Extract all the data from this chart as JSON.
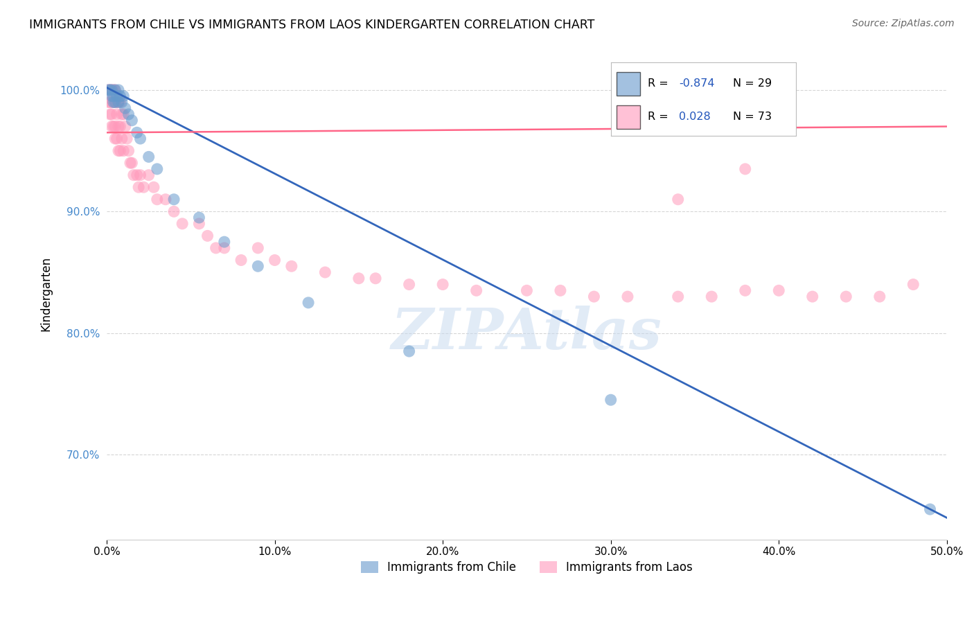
{
  "title": "IMMIGRANTS FROM CHILE VS IMMIGRANTS FROM LAOS KINDERGARTEN CORRELATION CHART",
  "source": "Source: ZipAtlas.com",
  "ylabel": "Kindergarten",
  "xlim": [
    0.0,
    0.5
  ],
  "ylim": [
    0.63,
    1.035
  ],
  "xticks": [
    0.0,
    0.1,
    0.2,
    0.3,
    0.4,
    0.5
  ],
  "xtick_labels": [
    "0.0%",
    "10.0%",
    "20.0%",
    "30.0%",
    "40.0%",
    "50.0%"
  ],
  "yticks": [
    0.7,
    0.8,
    0.9,
    1.0
  ],
  "ytick_labels": [
    "70.0%",
    "80.0%",
    "90.0%",
    "100.0%"
  ],
  "chile_color": "#6699CC",
  "laos_color": "#FF99BB",
  "chile_R": -0.874,
  "chile_N": 29,
  "laos_R": 0.028,
  "laos_N": 73,
  "trend_chile_color": "#3366BB",
  "trend_laos_color": "#FF6688",
  "watermark": "ZIPAtlas",
  "watermark_color": "#C5D8EE",
  "background_color": "#FFFFFF",
  "grid_color": "#CCCCCC",
  "chile_scatter_x": [
    0.001,
    0.002,
    0.003,
    0.003,
    0.004,
    0.004,
    0.005,
    0.005,
    0.006,
    0.007,
    0.007,
    0.008,
    0.009,
    0.01,
    0.011,
    0.013,
    0.015,
    0.018,
    0.02,
    0.025,
    0.03,
    0.04,
    0.055,
    0.07,
    0.09,
    0.12,
    0.18,
    0.3,
    0.49
  ],
  "chile_scatter_y": [
    1.0,
    1.0,
    0.995,
    1.0,
    0.995,
    0.99,
    1.0,
    0.99,
    0.995,
    1.0,
    0.99,
    0.995,
    0.99,
    0.995,
    0.985,
    0.98,
    0.975,
    0.965,
    0.96,
    0.945,
    0.935,
    0.91,
    0.895,
    0.875,
    0.855,
    0.825,
    0.785,
    0.745,
    0.655
  ],
  "laos_scatter_x": [
    0.001,
    0.001,
    0.002,
    0.002,
    0.002,
    0.003,
    0.003,
    0.003,
    0.003,
    0.004,
    0.004,
    0.004,
    0.005,
    0.005,
    0.005,
    0.005,
    0.006,
    0.006,
    0.006,
    0.007,
    0.007,
    0.007,
    0.008,
    0.008,
    0.008,
    0.009,
    0.009,
    0.01,
    0.01,
    0.011,
    0.012,
    0.013,
    0.014,
    0.015,
    0.016,
    0.018,
    0.019,
    0.02,
    0.022,
    0.025,
    0.028,
    0.03,
    0.035,
    0.04,
    0.045,
    0.055,
    0.06,
    0.065,
    0.07,
    0.08,
    0.09,
    0.1,
    0.11,
    0.13,
    0.15,
    0.16,
    0.18,
    0.2,
    0.22,
    0.25,
    0.27,
    0.29,
    0.31,
    0.34,
    0.36,
    0.38,
    0.4,
    0.42,
    0.44,
    0.46,
    0.48,
    0.34,
    0.38
  ],
  "laos_scatter_y": [
    1.0,
    0.99,
    1.0,
    0.99,
    0.98,
    1.0,
    0.99,
    0.98,
    0.97,
    1.0,
    0.99,
    0.97,
    1.0,
    0.99,
    0.97,
    0.96,
    0.99,
    0.98,
    0.96,
    0.99,
    0.97,
    0.95,
    0.99,
    0.97,
    0.95,
    0.98,
    0.96,
    0.98,
    0.95,
    0.97,
    0.96,
    0.95,
    0.94,
    0.94,
    0.93,
    0.93,
    0.92,
    0.93,
    0.92,
    0.93,
    0.92,
    0.91,
    0.91,
    0.9,
    0.89,
    0.89,
    0.88,
    0.87,
    0.87,
    0.86,
    0.87,
    0.86,
    0.855,
    0.85,
    0.845,
    0.845,
    0.84,
    0.84,
    0.835,
    0.835,
    0.835,
    0.83,
    0.83,
    0.83,
    0.83,
    0.835,
    0.835,
    0.83,
    0.83,
    0.83,
    0.84,
    0.91,
    0.935
  ],
  "chile_trend_x0": 0.0,
  "chile_trend_y0": 1.002,
  "chile_trend_x1": 0.5,
  "chile_trend_y1": 0.648,
  "laos_trend_x0": 0.0,
  "laos_trend_y0": 0.965,
  "laos_trend_x1": 0.5,
  "laos_trend_y1": 0.97
}
